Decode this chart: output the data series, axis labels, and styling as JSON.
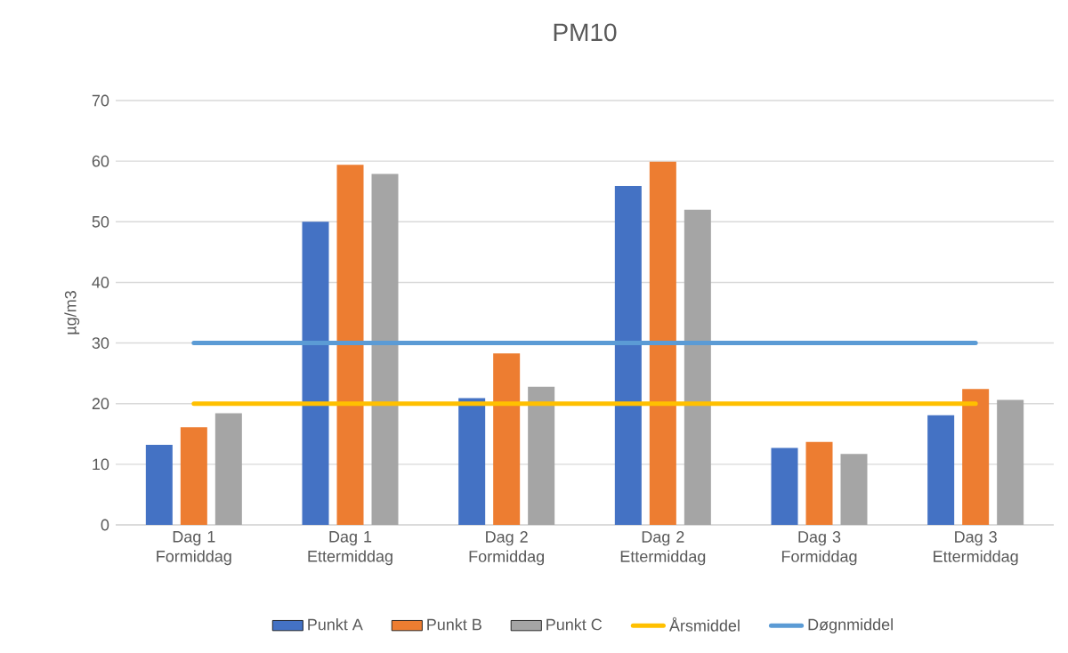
{
  "chart_data": {
    "type": "bar",
    "title": "PM10",
    "ylabel": "µg/m3",
    "categories": [
      "Dag 1 Formiddag",
      "Dag 1 Ettermiddag",
      "Dag 2 Formiddag",
      "Dag 2 Ettermiddag",
      "Dag 3 Formiddag",
      "Dag 3 Ettermiddag"
    ],
    "series": [
      {
        "name": "Punkt A",
        "color": "#4472c4",
        "values": [
          13.2,
          50,
          20.9,
          55.9,
          12.7,
          18.1
        ]
      },
      {
        "name": "Punkt B",
        "color": "#ed7d31",
        "values": [
          16.1,
          59.4,
          28.3,
          59.9,
          13.7,
          22.4
        ]
      },
      {
        "name": "Punkt C",
        "color": "#a5a5a5",
        "values": [
          18.4,
          57.9,
          22.8,
          52.0,
          11.7,
          20.6
        ]
      },
      {
        "name": "Årsmiddel",
        "type": "line",
        "color": "#ffc000",
        "values": [
          20,
          20,
          20,
          20,
          20,
          20
        ]
      },
      {
        "name": "Døgnmiddel",
        "type": "line",
        "color": "#5b9bd5",
        "values": [
          30,
          30,
          30,
          30,
          30,
          30
        ]
      }
    ],
    "ylim": [
      0,
      70
    ],
    "yticks": [
      0,
      10,
      20,
      30,
      40,
      50,
      60,
      70
    ],
    "grid": "y",
    "legend": "bottom",
    "marker": "none"
  }
}
